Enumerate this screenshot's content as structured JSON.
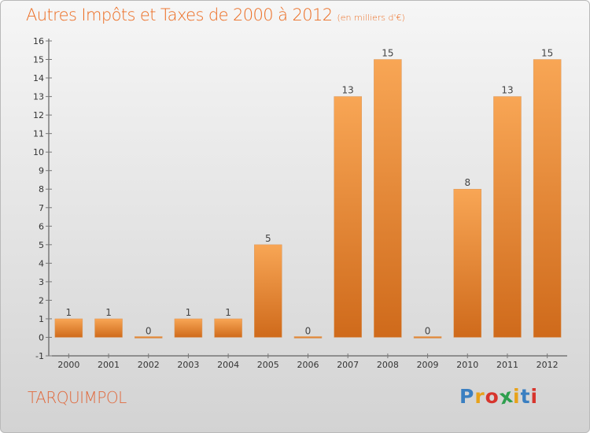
{
  "header": {
    "title": "Autres Impôts et Taxes de 2000 à 2012",
    "subtitle": "(en milliers d'€)"
  },
  "footer": {
    "commune": "TARQUIMPOL",
    "brand": [
      "P",
      "r",
      "o",
      "x",
      "i",
      "t",
      "i"
    ],
    "brand_colors": [
      "#3a7fc1",
      "#e8a21a",
      "#d7352d",
      "#2e9f4e",
      "#e8a21a",
      "#3a7fc1",
      "#d7352d"
    ]
  },
  "colors": {
    "bar_light": "#f8a655",
    "bar_dark": "#cf6a1b",
    "title": "#ec6c21",
    "commune": "#e06a3e",
    "axis": "#444444",
    "grid_tick": "#777777"
  },
  "chart_data": {
    "type": "bar",
    "categories": [
      "2000",
      "2001",
      "2002",
      "2003",
      "2004",
      "2005",
      "2006",
      "2007",
      "2008",
      "2009",
      "2010",
      "2011",
      "2012"
    ],
    "values": [
      1,
      1,
      0,
      1,
      1,
      5,
      0,
      13,
      15,
      0,
      8,
      13,
      15
    ],
    "data_labels": [
      "1",
      "1",
      "0",
      "1",
      "1",
      "5",
      "0",
      "13",
      "15",
      "0",
      "8",
      "13",
      "15"
    ],
    "y_ticks": [
      "-1",
      "0",
      "1",
      "2",
      "3",
      "4",
      "5",
      "6",
      "7",
      "8",
      "9",
      "10",
      "11",
      "12",
      "13",
      "14",
      "15",
      "16"
    ],
    "ylim": [
      -1,
      16
    ],
    "grid": false,
    "legend": "none"
  }
}
